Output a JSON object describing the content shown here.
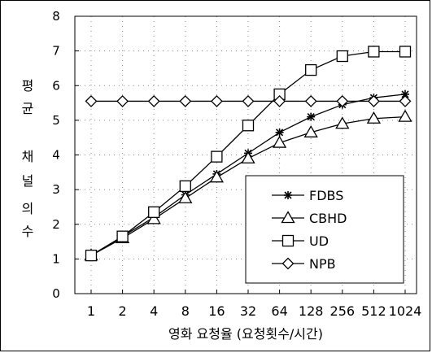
{
  "chart_data": {
    "type": "line",
    "title": "",
    "xlabel": "영화 요청율 (요청횟수/시간)",
    "ylabel": [
      "평",
      "균",
      "채",
      "널",
      "의",
      "수"
    ],
    "categories": [
      "1",
      "2",
      "4",
      "8",
      "16",
      "32",
      "64",
      "128",
      "256",
      "512",
      "1024"
    ],
    "yticks": [
      "0",
      "1",
      "2",
      "3",
      "4",
      "5",
      "6",
      "7",
      "8"
    ],
    "ylim": [
      0,
      8
    ],
    "grid": "dotted",
    "legend_position": "lower-right",
    "series": [
      {
        "name": "FDBS",
        "marker": "asterisk",
        "values": [
          1.1,
          1.65,
          2.2,
          2.85,
          3.45,
          4.05,
          4.65,
          5.1,
          5.45,
          5.65,
          5.75
        ]
      },
      {
        "name": "CBHD",
        "marker": "triangle",
        "values": [
          1.1,
          1.6,
          2.15,
          2.75,
          3.35,
          3.9,
          4.35,
          4.65,
          4.9,
          5.05,
          5.1
        ]
      },
      {
        "name": "UD",
        "marker": "square",
        "values": [
          1.1,
          1.65,
          2.35,
          3.1,
          3.95,
          4.85,
          5.75,
          6.45,
          6.85,
          6.98,
          6.98
        ]
      },
      {
        "name": "NPB",
        "marker": "diamond",
        "values": [
          5.55,
          5.55,
          5.55,
          5.55,
          5.55,
          5.55,
          5.55,
          5.55,
          5.55,
          5.55,
          5.55
        ]
      }
    ]
  }
}
